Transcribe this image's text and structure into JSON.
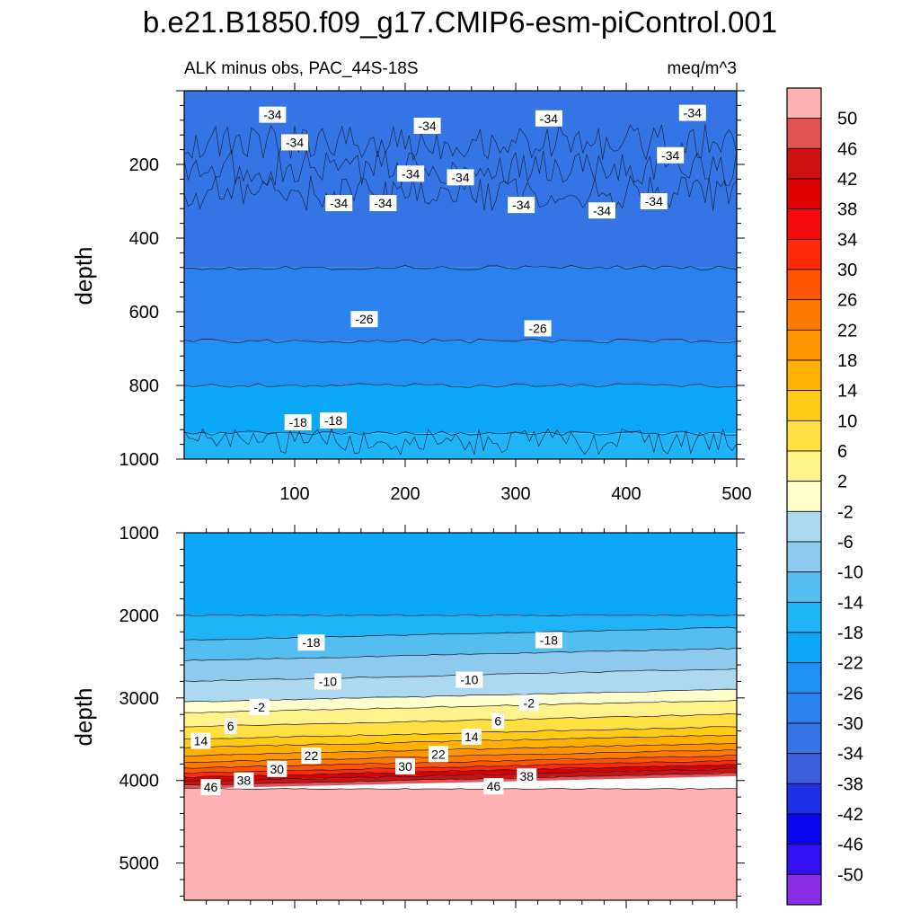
{
  "title": "b.e21.B1850.f09_g17.CMIP6-esm-piControl.001",
  "subtitle_left": "ALK minus obs, PAC_44S-18S",
  "subtitle_right": "meq/m^3",
  "colorbar": {
    "labels": [
      "50",
      "46",
      "42",
      "38",
      "34",
      "30",
      "26",
      "22",
      "18",
      "14",
      "10",
      "6",
      "2",
      "-2",
      "-6",
      "-10",
      "-14",
      "-18",
      "-22",
      "-26",
      "-30",
      "-34",
      "-38",
      "-42",
      "-46",
      "-50"
    ],
    "colors": [
      "#ffb1b1",
      "#e35353",
      "#cc1111",
      "#dd0000",
      "#f70a0a",
      "#ff2a0a",
      "#ff5500",
      "#ff7a00",
      "#ff9500",
      "#ffb000",
      "#ffcb15",
      "#ffe040",
      "#fff28a",
      "#ffffcc",
      "#acd8f0",
      "#8dcaee",
      "#55bef1",
      "#1fb4f8",
      "#0ca8f8",
      "#1d92f4",
      "#2b82ee",
      "#3474e4",
      "#3a5fdb",
      "#1e2fe8",
      "#0b05f2",
      "#3310f3",
      "#8a2de6"
    ]
  },
  "chart_data": [
    {
      "type": "heatmap",
      "panel": "upper",
      "title": "",
      "xlabel": "",
      "ylabel": "depth",
      "xlim": [
        0,
        500
      ],
      "ylim": [
        1000,
        0
      ],
      "xticks": [
        "100",
        "200",
        "300",
        "400",
        "500"
      ],
      "yticks": [
        "200",
        "400",
        "600",
        "800",
        "1000"
      ],
      "bands": [
        {
          "range": [
            0,
            480
          ],
          "color": "#3474e4",
          "value_range": [
            -38,
            -34
          ]
        },
        {
          "range": [
            480,
            680
          ],
          "color": "#2b82ee",
          "value_range": [
            -34,
            -30
          ]
        },
        {
          "range": [
            680,
            800
          ],
          "color": "#1d92f4",
          "value_range": [
            -30,
            -26
          ]
        },
        {
          "range": [
            800,
            930
          ],
          "color": "#0ca8f8",
          "value_range": [
            -26,
            -22
          ]
        },
        {
          "range": [
            930,
            1000
          ],
          "color": "#1fb4f8",
          "value_range": [
            -22,
            -18
          ]
        }
      ],
      "contour_labels": [
        {
          "text": "-34",
          "x": 80,
          "y": 65
        },
        {
          "text": "-34",
          "x": 100,
          "y": 140
        },
        {
          "text": "-34",
          "x": 220,
          "y": 95
        },
        {
          "text": "-34",
          "x": 330,
          "y": 75
        },
        {
          "text": "-34",
          "x": 460,
          "y": 60
        },
        {
          "text": "-34",
          "x": 440,
          "y": 175
        },
        {
          "text": "-34",
          "x": 205,
          "y": 225
        },
        {
          "text": "-34",
          "x": 250,
          "y": 235
        },
        {
          "text": "-34",
          "x": 140,
          "y": 305
        },
        {
          "text": "-34",
          "x": 180,
          "y": 305
        },
        {
          "text": "-34",
          "x": 305,
          "y": 310
        },
        {
          "text": "-34",
          "x": 378,
          "y": 325
        },
        {
          "text": "-34",
          "x": 425,
          "y": 300
        },
        {
          "text": "-26",
          "x": 163,
          "y": 620
        },
        {
          "text": "-26",
          "x": 320,
          "y": 645
        },
        {
          "text": "-18",
          "x": 103,
          "y": 900
        },
        {
          "text": "-18",
          "x": 135,
          "y": 895
        }
      ]
    },
    {
      "type": "heatmap",
      "panel": "lower",
      "title": "",
      "xlabel": "",
      "ylabel": "depth",
      "xlim": [
        0,
        500
      ],
      "ylim": [
        5450,
        1000
      ],
      "xticks": [],
      "yticks": [
        "1000",
        "2000",
        "3000",
        "4000",
        "5000"
      ],
      "bands": [
        {
          "range": [
            1000,
            2000
          ],
          "color": "#0ca8f8",
          "value_range": [
            -26,
            -22
          ]
        },
        {
          "range": [
            2000,
            2300
          ],
          "color": "#1fb4f8",
          "value_range": [
            -22,
            -18
          ]
        },
        {
          "range": [
            2300,
            2550
          ],
          "color": "#55bef1",
          "value_range": [
            -18,
            -14
          ]
        },
        {
          "range": [
            2550,
            2800
          ],
          "color": "#8dcaee",
          "value_range": [
            -14,
            -10
          ]
        },
        {
          "range": [
            2800,
            3050
          ],
          "color": "#acd8f0",
          "value_range": [
            -10,
            -6
          ]
        },
        {
          "range": [
            3050,
            3180
          ],
          "color": "#ffffcc",
          "value_range": [
            -2,
            2
          ]
        },
        {
          "range": [
            3180,
            3350
          ],
          "color": "#fff28a",
          "value_range": [
            2,
            6
          ]
        },
        {
          "range": [
            3350,
            3500
          ],
          "color": "#ffe040",
          "value_range": [
            6,
            10
          ]
        },
        {
          "range": [
            3500,
            3600
          ],
          "color": "#ffcb15",
          "value_range": [
            10,
            14
          ]
        },
        {
          "range": [
            3600,
            3700
          ],
          "color": "#ffb000",
          "value_range": [
            14,
            18
          ]
        },
        {
          "range": [
            3700,
            3780
          ],
          "color": "#ff9500",
          "value_range": [
            18,
            22
          ]
        },
        {
          "range": [
            3780,
            3850
          ],
          "color": "#ff7a00",
          "value_range": [
            22,
            26
          ]
        },
        {
          "range": [
            3850,
            3910
          ],
          "color": "#ff5500",
          "value_range": [
            26,
            30
          ]
        },
        {
          "range": [
            3910,
            3960
          ],
          "color": "#ff2a0a",
          "value_range": [
            30,
            34
          ]
        },
        {
          "range": [
            3960,
            4010
          ],
          "color": "#dd0000",
          "value_range": [
            34,
            42
          ]
        },
        {
          "range": [
            4010,
            4060
          ],
          "color": "#cc1111",
          "value_range": [
            42,
            46
          ]
        },
        {
          "range": [
            4060,
            4100
          ],
          "color": "#e35353",
          "value_range": [
            46,
            50
          ]
        },
        {
          "range": [
            4100,
            5450
          ],
          "color": "#ffb1b1",
          "value_range": [
            50,
            54
          ]
        }
      ],
      "contour_labels": [
        {
          "text": "-18",
          "x": 115,
          "y": 2330
        },
        {
          "text": "-18",
          "x": 330,
          "y": 2300
        },
        {
          "text": "-10",
          "x": 130,
          "y": 2800
        },
        {
          "text": "-10",
          "x": 258,
          "y": 2780
        },
        {
          "text": "-2",
          "x": 68,
          "y": 3110
        },
        {
          "text": "-2",
          "x": 312,
          "y": 3060
        },
        {
          "text": "6",
          "x": 42,
          "y": 3340
        },
        {
          "text": "6",
          "x": 284,
          "y": 3280
        },
        {
          "text": "14",
          "x": 15,
          "y": 3520
        },
        {
          "text": "14",
          "x": 260,
          "y": 3470
        },
        {
          "text": "22",
          "x": 115,
          "y": 3700
        },
        {
          "text": "22",
          "x": 230,
          "y": 3680
        },
        {
          "text": "30",
          "x": 84,
          "y": 3860
        },
        {
          "text": "30",
          "x": 200,
          "y": 3830
        },
        {
          "text": "38",
          "x": 54,
          "y": 4000
        },
        {
          "text": "38",
          "x": 310,
          "y": 3950
        },
        {
          "text": "46",
          "x": 24,
          "y": 4080
        },
        {
          "text": "46",
          "x": 280,
          "y": 4070
        }
      ]
    }
  ]
}
